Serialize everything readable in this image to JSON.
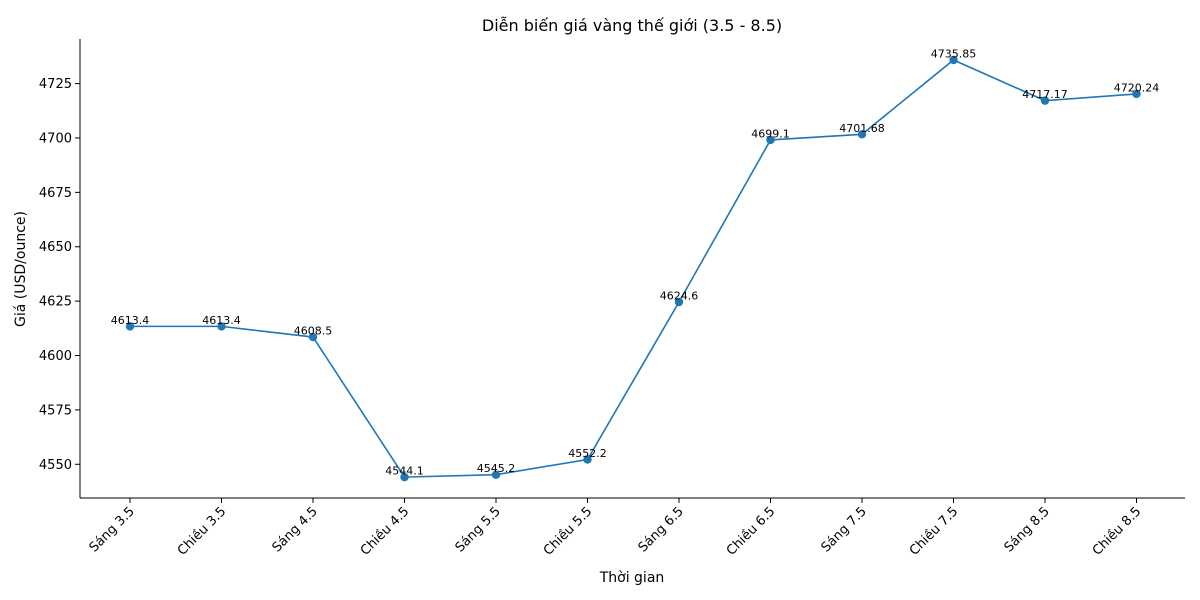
{
  "chart_data": {
    "type": "line",
    "title": "Diễn biến giá vàng thế giới (3.5 - 8.5)",
    "xlabel": "Thời gian",
    "ylabel": "Giá (USD/ounce)",
    "categories": [
      "Sáng 3.5",
      "Chiều 3.5",
      "Sáng 4.5",
      "Chiều 4.5",
      "Sáng 5.5",
      "Chiều 5.5",
      "Sáng 6.5",
      "Chiều 6.5",
      "Sáng 7.5",
      "Chiều 7.5",
      "Sáng 8.5",
      "Chiều 8.5"
    ],
    "series": [
      {
        "values": [
          4613.4,
          4613.4,
          4608.5,
          4544.1,
          4545.2,
          4552.2,
          4624.6,
          4699.1,
          4701.68,
          4735.85,
          4717.17,
          4720.24
        ],
        "data_labels": [
          "4613.4",
          "4613.4",
          "4608.5",
          "4544.1",
          "4545.2",
          "4552.2",
          "4624.6",
          "4699.1",
          "4701.68",
          "4735.85",
          "4717.17",
          "4720.24"
        ],
        "color": "#1f77b4"
      }
    ],
    "yticks": [
      4550,
      4575,
      4600,
      4625,
      4650,
      4675,
      4700,
      4725
    ],
    "ylim": [
      4534.5,
      4745.5
    ],
    "grid": false,
    "legend": "none"
  }
}
